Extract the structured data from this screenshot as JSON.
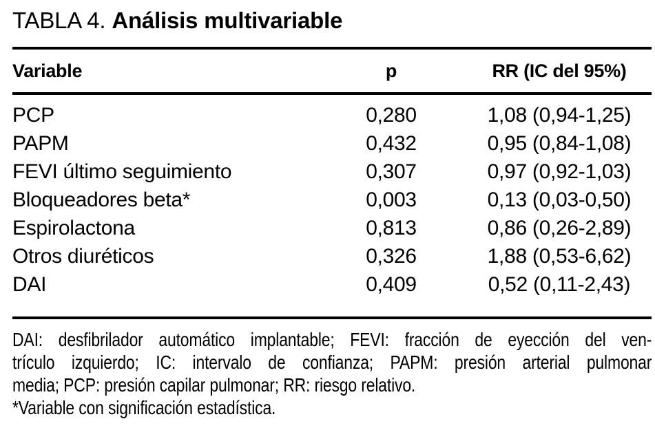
{
  "title": {
    "label": "TABLA 4.",
    "emphasis": "Análisis multivariable"
  },
  "table": {
    "columns": [
      {
        "label": "Variable"
      },
      {
        "label": "p"
      },
      {
        "label": "RR (IC del 95%)"
      }
    ],
    "rows": [
      {
        "variable": "PCP",
        "p": "0,280",
        "rr": "1,08 (0,94-1,25)"
      },
      {
        "variable": "PAPM",
        "p": "0,432",
        "rr": "0,95 (0,84-1,08)"
      },
      {
        "variable": "FEVI último seguimiento",
        "p": "0,307",
        "rr": "0,97 (0,92-1,03)"
      },
      {
        "variable": "Bloqueadores beta*",
        "p": "0,003",
        "rr": "0,13 (0,03-0,50)"
      },
      {
        "variable": "Espirolactona",
        "p": "0,813",
        "rr": "0,86 (0,26-2,89)"
      },
      {
        "variable": "Otros diuréticos",
        "p": "0,326",
        "rr": "1,88 (0,53-6,62)"
      },
      {
        "variable": "DAI",
        "p": "0,409",
        "rr": "0,52 (0,11-2,43)"
      }
    ]
  },
  "footnotes": {
    "abbreviations_lines": [
      "DAI: desfibrilador automático implantable; FEVI: fracción de eyección del ven-",
      "trículo izquierdo; IC: intervalo de confianza; PAPM: presión arterial pulmonar",
      "media; PCP: presión capilar pulmonar; RR: riesgo relativo."
    ],
    "significance_note": "*Variable con significación estadística."
  },
  "colors": {
    "text": "#000000",
    "background": "#ffffff",
    "rule": "#000000"
  }
}
